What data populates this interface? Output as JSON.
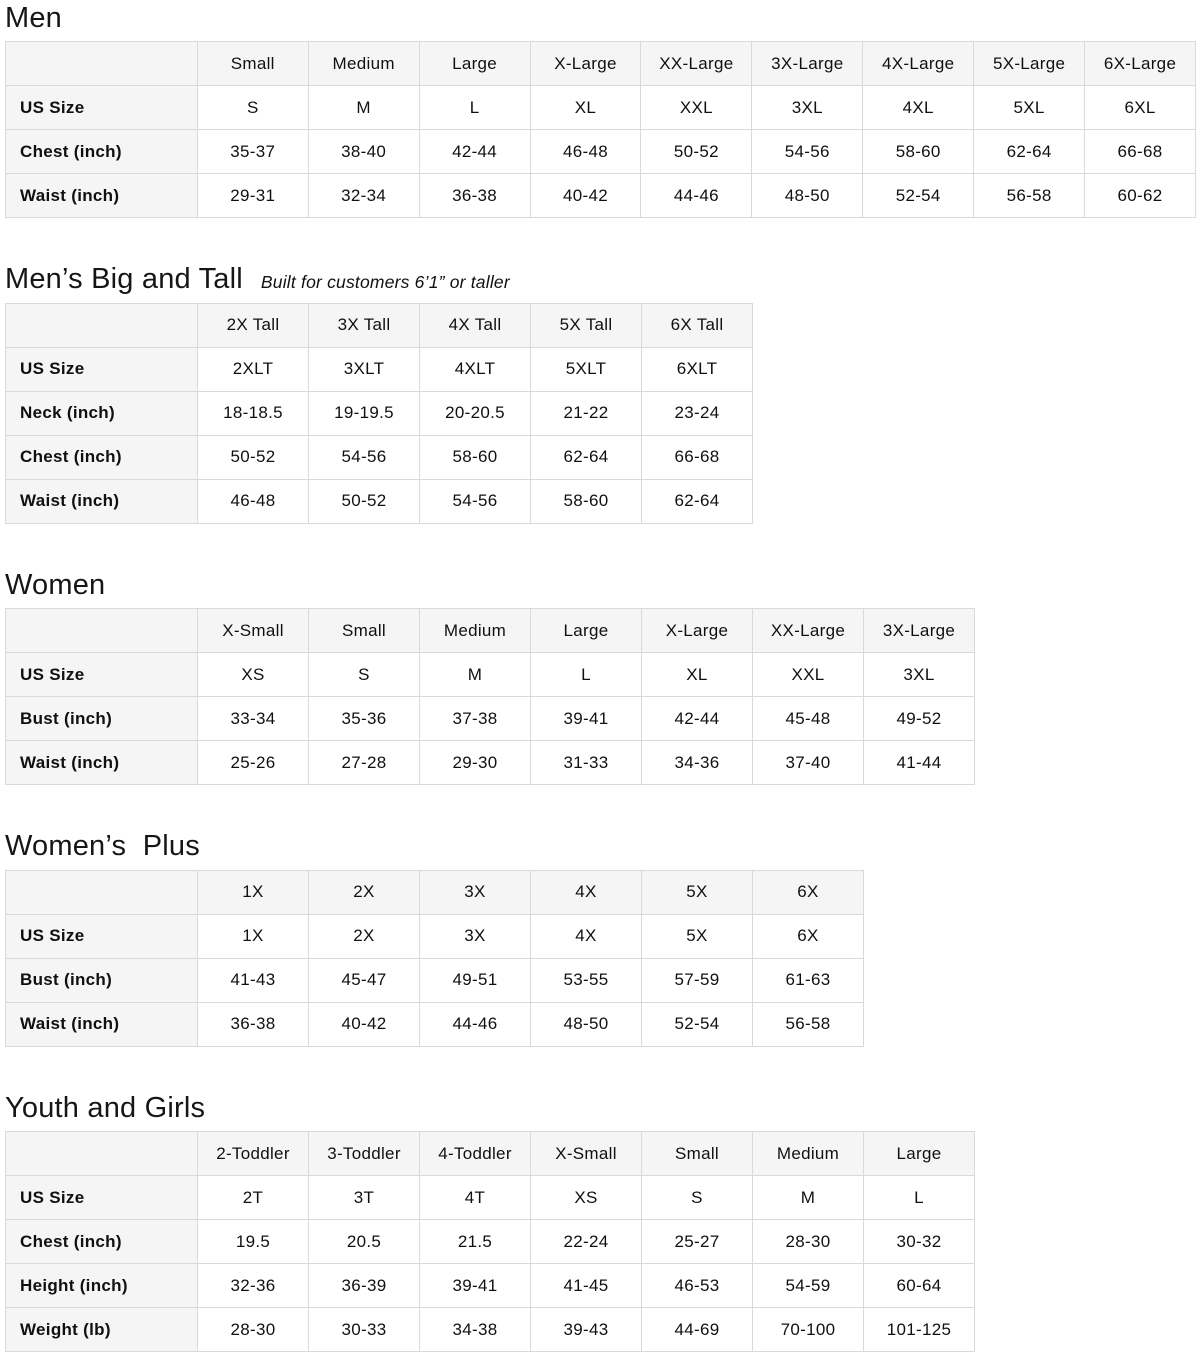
{
  "page": {
    "background_color": "#ffffff",
    "text_color": "#0f1111",
    "table_header_bg": "#f5f5f5",
    "table_border_color": "#d9d9d9"
  },
  "tables": [
    {
      "id": "men",
      "title": "Men",
      "subtitle": "",
      "columns": [
        "Small",
        "Medium",
        "Large",
        "X-Large",
        "XX-Large",
        "3X-Large",
        "4X-Large",
        "5X-Large",
        "6X-Large"
      ],
      "rows": [
        {
          "label": "US Size",
          "values": [
            "S",
            "M",
            "L",
            "XL",
            "XXL",
            "3XL",
            "4XL",
            "5XL",
            "6XL"
          ]
        },
        {
          "label": "Chest (inch)",
          "values": [
            "35-37",
            "38-40",
            "42-44",
            "46-48",
            "50-52",
            "54-56",
            "58-60",
            "62-64",
            "66-68"
          ]
        },
        {
          "label": "Waist (inch)",
          "values": [
            "29-31",
            "32-34",
            "36-38",
            "40-42",
            "44-46",
            "48-50",
            "52-54",
            "56-58",
            "60-62"
          ]
        }
      ]
    },
    {
      "id": "mens-big-and-tall",
      "title": "Men’s Big and Tall",
      "subtitle": "Built for customers 6’1” or taller",
      "columns": [
        "2X Tall",
        "3X Tall",
        "4X Tall",
        "5X Tall",
        "6X Tall"
      ],
      "rows": [
        {
          "label": "US Size",
          "values": [
            "2XLT",
            "3XLT",
            "4XLT",
            "5XLT",
            "6XLT"
          ]
        },
        {
          "label": "Neck (inch)",
          "values": [
            "18-18.5",
            "19-19.5",
            "20-20.5",
            "21-22",
            "23-24"
          ]
        },
        {
          "label": "Chest (inch)",
          "values": [
            "50-52",
            "54-56",
            "58-60",
            "62-64",
            "66-68"
          ]
        },
        {
          "label": "Waist (inch)",
          "values": [
            "46-48",
            "50-52",
            "54-56",
            "58-60",
            "62-64"
          ]
        }
      ]
    },
    {
      "id": "women",
      "title": "Women",
      "subtitle": "",
      "columns": [
        "X-Small",
        "Small",
        "Medium",
        "Large",
        "X-Large",
        "XX-Large",
        "3X-Large"
      ],
      "rows": [
        {
          "label": "US Size",
          "values": [
            "XS",
            "S",
            "M",
            "L",
            "XL",
            "XXL",
            "3XL"
          ]
        },
        {
          "label": "Bust (inch)",
          "values": [
            "33-34",
            "35-36",
            "37-38",
            "39-41",
            "42-44",
            "45-48",
            "49-52"
          ]
        },
        {
          "label": "Waist (inch)",
          "values": [
            "25-26",
            "27-28",
            "29-30",
            "31-33",
            "34-36",
            "37-40",
            "41-44"
          ]
        }
      ]
    },
    {
      "id": "womens-plus",
      "title": "Women’s  Plus",
      "subtitle": "",
      "columns": [
        "1X",
        "2X",
        "3X",
        "4X",
        "5X",
        "6X"
      ],
      "rows": [
        {
          "label": "US Size",
          "values": [
            "1X",
            "2X",
            "3X",
            "4X",
            "5X",
            "6X"
          ]
        },
        {
          "label": "Bust (inch)",
          "values": [
            "41-43",
            "45-47",
            "49-51",
            "53-55",
            "57-59",
            "61-63"
          ]
        },
        {
          "label": "Waist (inch)",
          "values": [
            "36-38",
            "40-42",
            "44-46",
            "48-50",
            "52-54",
            "56-58"
          ]
        }
      ]
    },
    {
      "id": "youth-and-girls",
      "title": "Youth and Girls",
      "subtitle": "",
      "columns": [
        "2-Toddler",
        "3-Toddler",
        "4-Toddler",
        "X-Small",
        "Small",
        "Medium",
        "Large"
      ],
      "rows": [
        {
          "label": "US Size",
          "values": [
            "2T",
            "3T",
            "4T",
            "XS",
            "S",
            "M",
            "L"
          ]
        },
        {
          "label": "Chest (inch)",
          "values": [
            "19.5",
            "20.5",
            "21.5",
            "22-24",
            "25-27",
            "28-30",
            "30-32"
          ]
        },
        {
          "label": "Height (inch)",
          "values": [
            "32-36",
            "36-39",
            "39-41",
            "41-45",
            "46-53",
            "54-59",
            "60-64"
          ]
        },
        {
          "label": "Weight (lb)",
          "values": [
            "28-30",
            "30-33",
            "34-38",
            "39-43",
            "44-69",
            "70-100",
            "101-125"
          ]
        }
      ]
    }
  ]
}
